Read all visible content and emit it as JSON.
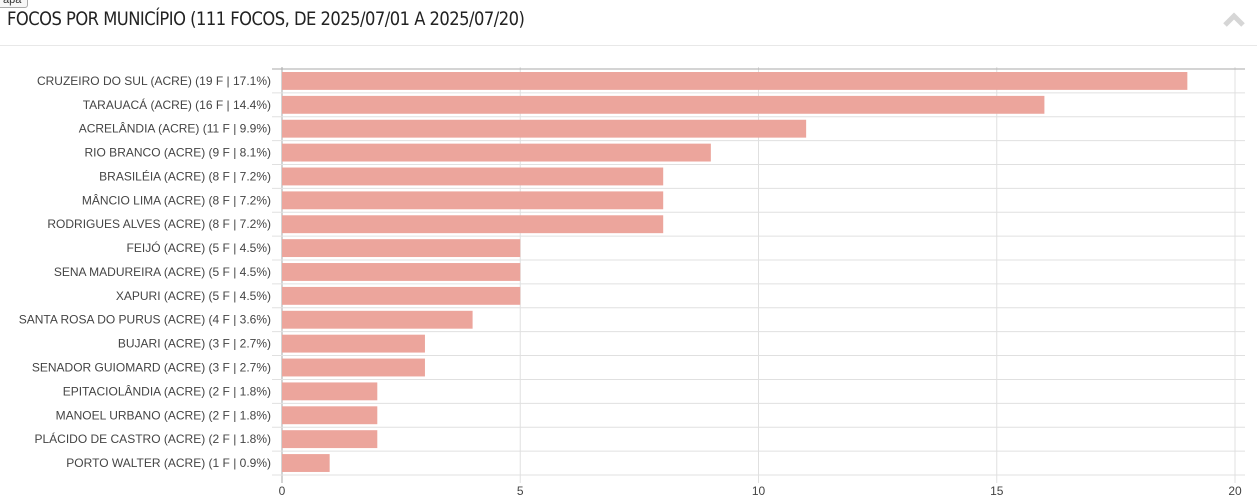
{
  "tooltip": "apa",
  "header": {
    "title": "FOCOS POR MUNICÍPIO (111 FOCOS, DE 2025/07/01 A 2025/07/20)"
  },
  "colors": {
    "bar": "#eca59c",
    "grid": "#e0e0e0",
    "axis": "#aaaaaa"
  },
  "chart_data": {
    "type": "bar",
    "orientation": "horizontal",
    "title": "FOCOS POR MUNICÍPIO (111 FOCOS, DE 2025/07/01 A 2025/07/20)",
    "categories": [
      "CRUZEIRO DO SUL (ACRE) (19 F | 17.1%)",
      "TARAUACÁ (ACRE) (16 F | 14.4%)",
      "ACRELÂNDIA (ACRE) (11 F | 9.9%)",
      "RIO BRANCO (ACRE) (9 F | 8.1%)",
      "BRASILÉIA (ACRE) (8 F | 7.2%)",
      "MÂNCIO LIMA (ACRE) (8 F | 7.2%)",
      "RODRIGUES ALVES (ACRE) (8 F | 7.2%)",
      "FEIJÓ (ACRE) (5 F | 4.5%)",
      "SENA MADUREIRA (ACRE) (5 F | 4.5%)",
      "XAPURI (ACRE) (5 F | 4.5%)",
      "SANTA ROSA DO PURUS (ACRE) (4 F | 3.6%)",
      "BUJARI (ACRE) (3 F | 2.7%)",
      "SENADOR GUIOMARD (ACRE) (3 F | 2.7%)",
      "EPITACIOLÂNDIA (ACRE) (2 F | 1.8%)",
      "MANOEL URBANO (ACRE) (2 F | 1.8%)",
      "PLÁCIDO DE CASTRO (ACRE) (2 F | 1.8%)",
      "PORTO WALTER (ACRE) (1 F | 0.9%)"
    ],
    "values": [
      19,
      16,
      11,
      9,
      8,
      8,
      8,
      5,
      5,
      5,
      4,
      3,
      3,
      2,
      2,
      2,
      1
    ],
    "xlim": [
      0,
      20
    ],
    "xticks": [
      "0",
      "5",
      "10",
      "15",
      "20"
    ],
    "xlabel": "",
    "ylabel": "",
    "grid": true
  }
}
